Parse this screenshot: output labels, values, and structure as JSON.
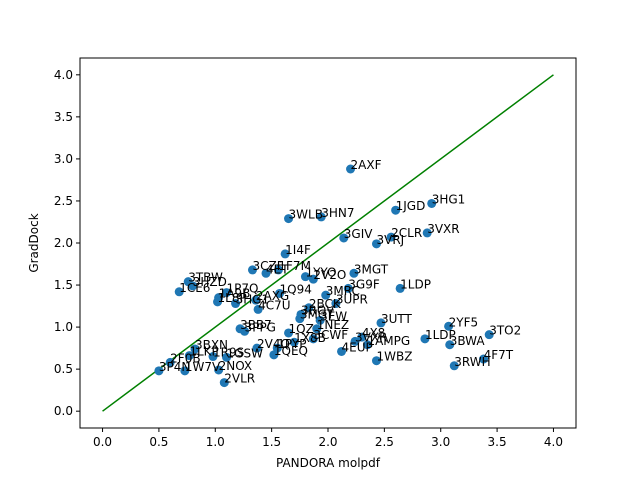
{
  "chart_data": {
    "type": "scatter",
    "title": "",
    "xlabel": "PANDORA molpdf",
    "ylabel": "GradDock",
    "xlim": [
      -0.2,
      4.2
    ],
    "ylim": [
      -0.2,
      4.2
    ],
    "xticks": [
      "0.0",
      "0.5",
      "1.0",
      "1.5",
      "2.0",
      "2.5",
      "3.0",
      "3.5",
      "4.0"
    ],
    "yticks": [
      "0.0",
      "0.5",
      "1.0",
      "1.5",
      "2.0",
      "2.5",
      "3.0",
      "3.5",
      "4.0"
    ],
    "grid": false,
    "reference_line": {
      "x": [
        0,
        4
      ],
      "y": [
        0,
        4
      ],
      "color": "#008000"
    },
    "marker_color": "#1f77b4",
    "points": [
      {
        "label": "2AXF",
        "x": 2.2,
        "y": 2.88
      },
      {
        "label": "3HG1",
        "x": 2.92,
        "y": 2.47
      },
      {
        "label": "1JGD",
        "x": 2.6,
        "y": 2.39
      },
      {
        "label": "3WLB",
        "x": 1.65,
        "y": 2.29
      },
      {
        "label": "3HN7",
        "x": 1.94,
        "y": 2.31
      },
      {
        "label": "3VXR",
        "x": 2.88,
        "y": 2.12
      },
      {
        "label": "2CLR",
        "x": 2.56,
        "y": 2.07
      },
      {
        "label": "3GIV",
        "x": 2.14,
        "y": 2.06
      },
      {
        "label": "3VRJ",
        "x": 2.43,
        "y": 1.99
      },
      {
        "label": "1I4F",
        "x": 1.62,
        "y": 1.87
      },
      {
        "label": "3CZF",
        "x": 1.33,
        "y": 1.68
      },
      {
        "label": "1F7M",
        "x": 1.56,
        "y": 1.68
      },
      {
        "label": "4ET",
        "x": 1.45,
        "y": 1.64
      },
      {
        "label": "1YYO",
        "x": 1.8,
        "y": 1.6
      },
      {
        "label": "2V2O",
        "x": 1.87,
        "y": 1.57
      },
      {
        "label": "3MGT",
        "x": 2.23,
        "y": 1.64
      },
      {
        "label": "3TBW",
        "x": 0.76,
        "y": 1.54
      },
      {
        "label": "3HZD",
        "x": 0.8,
        "y": 1.49
      },
      {
        "label": "1LDP",
        "x": 2.64,
        "y": 1.46
      },
      {
        "label": "3G9F",
        "x": 2.18,
        "y": 1.46
      },
      {
        "label": "1CE6",
        "x": 0.68,
        "y": 1.42
      },
      {
        "label": "1P7Q",
        "x": 1.1,
        "y": 1.41
      },
      {
        "label": "1Q94",
        "x": 1.57,
        "y": 1.4
      },
      {
        "label": "3MRC",
        "x": 1.98,
        "y": 1.38
      },
      {
        "label": "1A9B",
        "x": 1.03,
        "y": 1.35
      },
      {
        "label": "2AXG",
        "x": 1.36,
        "y": 1.32
      },
      {
        "label": "1L8P",
        "x": 1.02,
        "y": 1.3
      },
      {
        "label": "3HG1",
        "x": 1.18,
        "y": 1.28
      },
      {
        "label": "3UPR",
        "x": 2.07,
        "y": 1.28
      },
      {
        "label": "2BCK",
        "x": 1.83,
        "y": 1.23
      },
      {
        "label": "4C7U",
        "x": 1.38,
        "y": 1.21
      },
      {
        "label": "3ROV",
        "x": 1.76,
        "y": 1.15
      },
      {
        "label": "3MGT",
        "x": 1.75,
        "y": 1.1
      },
      {
        "label": "3EW",
        "x": 1.93,
        "y": 1.08
      },
      {
        "label": "3UTT",
        "x": 2.47,
        "y": 1.05
      },
      {
        "label": "2YF5",
        "x": 3.07,
        "y": 1.01
      },
      {
        "label": "3BB7",
        "x": 1.22,
        "y": 0.98
      },
      {
        "label": "1NEZ",
        "x": 1.9,
        "y": 0.98
      },
      {
        "label": "3PPG",
        "x": 1.26,
        "y": 0.95
      },
      {
        "label": "1QZ",
        "x": 1.65,
        "y": 0.93
      },
      {
        "label": "3TO2",
        "x": 3.43,
        "y": 0.91
      },
      {
        "label": "4X8",
        "x": 2.3,
        "y": 0.88
      },
      {
        "label": "1LDP",
        "x": 2.86,
        "y": 0.86
      },
      {
        "label": "3CWF",
        "x": 1.87,
        "y": 0.86
      },
      {
        "label": "3VXR",
        "x": 2.24,
        "y": 0.83
      },
      {
        "label": "1X8B",
        "x": 1.7,
        "y": 0.82
      },
      {
        "label": "1AMPG",
        "x": 2.35,
        "y": 0.79
      },
      {
        "label": "3BWA",
        "x": 3.08,
        "y": 0.79
      },
      {
        "label": "3BXN",
        "x": 0.82,
        "y": 0.74
      },
      {
        "label": "2V4Q",
        "x": 1.37,
        "y": 0.75
      },
      {
        "label": "1PYP",
        "x": 1.55,
        "y": 0.75
      },
      {
        "label": "4EUP",
        "x": 2.12,
        "y": 0.71
      },
      {
        "label": "1QEQ",
        "x": 1.52,
        "y": 0.67
      },
      {
        "label": "1LKP",
        "x": 0.77,
        "y": 0.66
      },
      {
        "label": "1R9S",
        "x": 0.98,
        "y": 0.65
      },
      {
        "label": "1GSW",
        "x": 1.1,
        "y": 0.64
      },
      {
        "label": "1WBZ",
        "x": 2.43,
        "y": 0.6
      },
      {
        "label": "4F7T",
        "x": 3.38,
        "y": 0.62
      },
      {
        "label": "2F0B",
        "x": 0.6,
        "y": 0.58
      },
      {
        "label": "3RWH",
        "x": 3.12,
        "y": 0.54
      },
      {
        "label": "3P4N",
        "x": 0.5,
        "y": 0.48
      },
      {
        "label": "1W7V",
        "x": 0.73,
        "y": 0.48
      },
      {
        "label": "2NOX",
        "x": 1.03,
        "y": 0.49
      },
      {
        "label": "2VLR",
        "x": 1.08,
        "y": 0.34
      }
    ]
  }
}
